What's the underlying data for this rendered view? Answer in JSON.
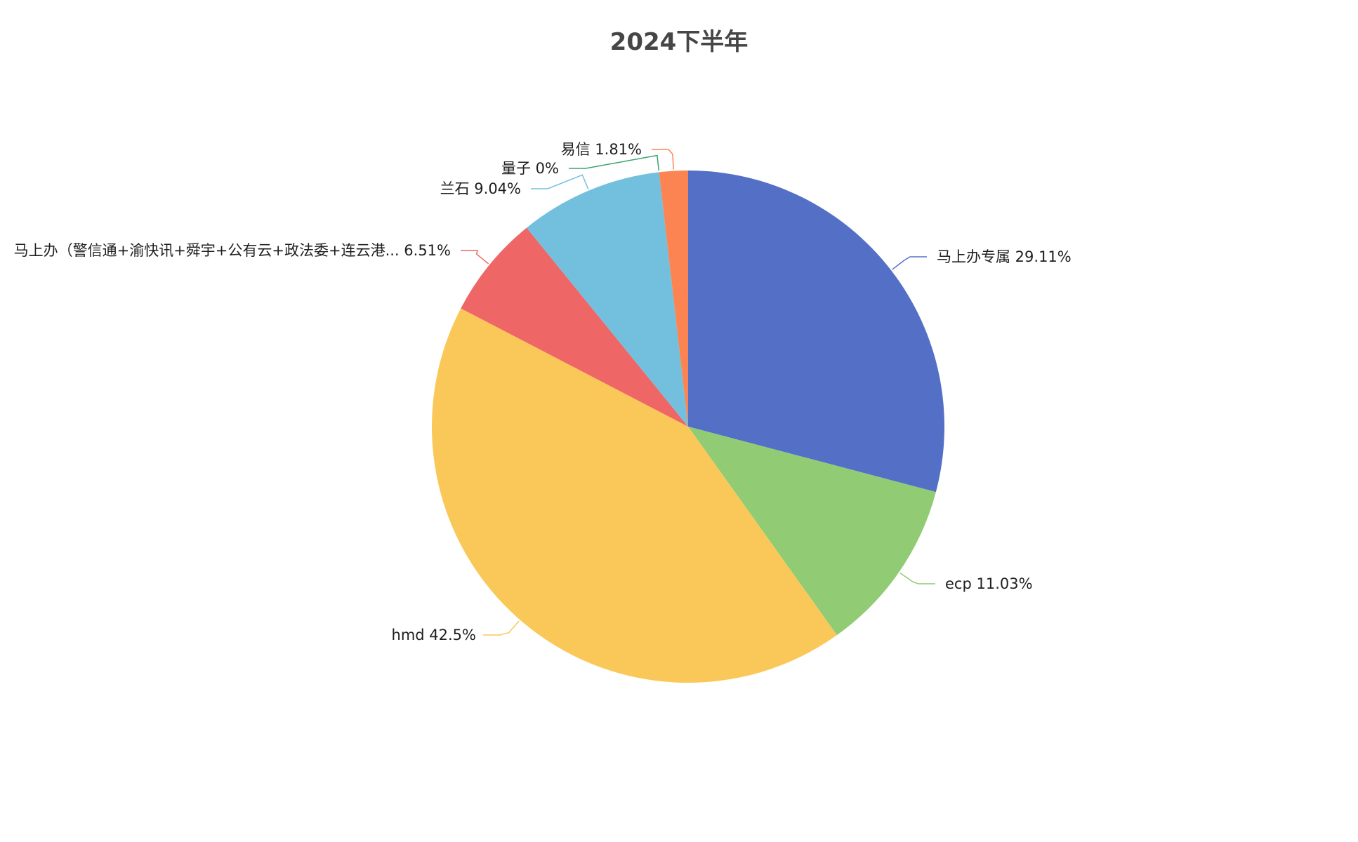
{
  "chart_data": {
    "type": "pie",
    "title": "2024下半年",
    "slices": [
      {
        "name": "马上办专属",
        "percent_label": "29.11%",
        "value": 29.11,
        "color": "#5470c6"
      },
      {
        "name": "ecp",
        "percent_label": "11.03%",
        "value": 11.03,
        "color": "#91cc75"
      },
      {
        "name": "hmd",
        "percent_label": "42.5%",
        "value": 42.5,
        "color": "#fac858"
      },
      {
        "name": "马上办（警信通+渝快讯+舜宇+公有云+政法委+连云港...",
        "percent_label": "6.51%",
        "value": 6.51,
        "color": "#ee6666"
      },
      {
        "name": "兰石",
        "percent_label": "9.04%",
        "value": 9.04,
        "color": "#73c0de"
      },
      {
        "name": "量子",
        "percent_label": "0%",
        "value": 0,
        "color": "#3ba272"
      },
      {
        "name": "易信",
        "percent_label": "1.81%",
        "value": 1.81,
        "color": "#fc8452"
      }
    ]
  }
}
